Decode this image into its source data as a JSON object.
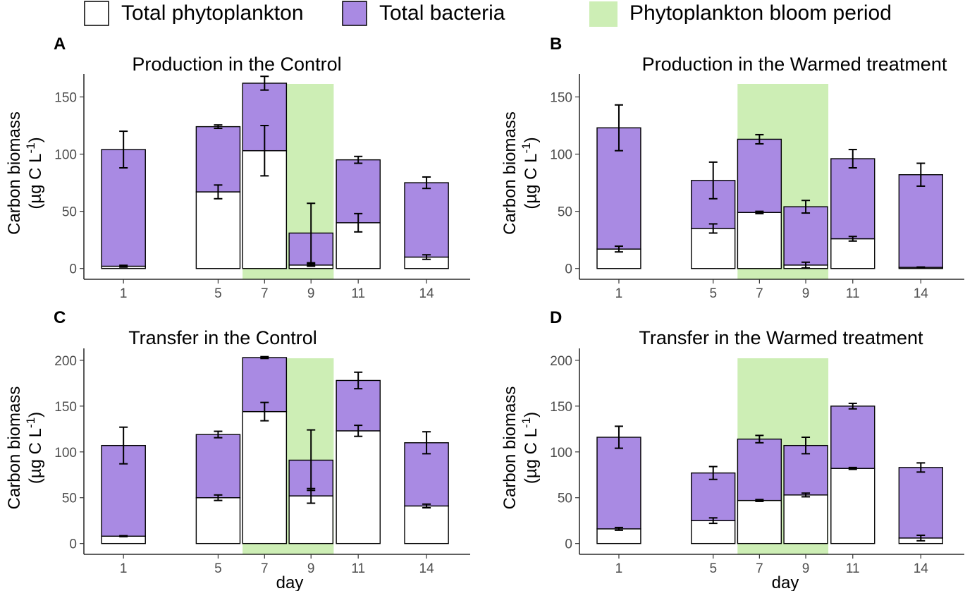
{
  "legend": {
    "phytoplankton_label": "Total phytoplankton",
    "bacteria_label": "Total bacteria",
    "bloom_label": "Phytoplankton bloom period"
  },
  "colors": {
    "phytoplankton": "#ffffff",
    "bacteria": "#a98ae3",
    "bloom": "#cdeeb5",
    "outline": "#000000"
  },
  "chart_data": [
    {
      "type": "bar",
      "stacked": true,
      "letter": "A",
      "title": "Production in the Control",
      "xlabel": "",
      "ylabel_line1": "Carbon biomass",
      "ylabel_line2": "(µg C L",
      "ylabel_sup": "-1",
      "ylabel_end": ")",
      "ylim": [
        0,
        170
      ],
      "yticks": [
        0,
        50,
        100,
        150
      ],
      "x": [
        1,
        5,
        7,
        9,
        11,
        14
      ],
      "x_tick_labels": [
        "1",
        "5",
        "7",
        "9",
        "11",
        "14"
      ],
      "bloom_days": [
        7,
        9
      ],
      "series": [
        {
          "name": "Total phytoplankton",
          "values": [
            2,
            67,
            103,
            3,
            40,
            10
          ],
          "err": [
            0.8,
            6,
            22,
            1,
            8,
            2
          ]
        },
        {
          "name": "Total bacteria",
          "values": [
            102,
            57,
            59,
            28,
            55,
            65
          ],
          "err": [
            16,
            1.5,
            6,
            26,
            3,
            5
          ]
        }
      ]
    },
    {
      "type": "bar",
      "stacked": true,
      "letter": "B",
      "title": "Production in the Warmed treatment",
      "xlabel": "",
      "ylabel_line1": "Carbon biomass",
      "ylabel_line2": "(µg C L",
      "ylabel_sup": "-1",
      "ylabel_end": ")",
      "ylim": [
        0,
        170
      ],
      "yticks": [
        0,
        50,
        100,
        150
      ],
      "x": [
        1,
        5,
        7,
        9,
        11,
        14
      ],
      "x_tick_labels": [
        "1",
        "5",
        "7",
        "9",
        "11",
        "14"
      ],
      "bloom_days": [
        7,
        9
      ],
      "series": [
        {
          "name": "Total phytoplankton",
          "values": [
            17,
            35,
            49,
            3,
            26,
            1
          ],
          "err": [
            2.5,
            4,
            1,
            2.5,
            2,
            0.3
          ]
        },
        {
          "name": "Total bacteria",
          "values": [
            106,
            42,
            64,
            51,
            70,
            81
          ],
          "err": [
            20,
            16,
            4,
            5.5,
            8,
            10
          ]
        }
      ]
    },
    {
      "type": "bar",
      "stacked": true,
      "letter": "C",
      "title": "Transfer in the Control",
      "xlabel": "day",
      "ylabel_line1": "Carbon biomass",
      "ylabel_line2": "(µg C L",
      "ylabel_sup": "-1",
      "ylabel_end": ")",
      "ylim": [
        0,
        213
      ],
      "yticks": [
        0,
        50,
        100,
        150,
        200
      ],
      "x": [
        1,
        5,
        7,
        9,
        11,
        14
      ],
      "x_tick_labels": [
        "1",
        "5",
        "7",
        "9",
        "11",
        "14"
      ],
      "bloom_days": [
        7,
        9
      ],
      "series": [
        {
          "name": "Total phytoplankton",
          "values": [
            8,
            50,
            144,
            52,
            123,
            41
          ],
          "err": [
            0.5,
            3,
            10,
            8,
            6,
            2
          ]
        },
        {
          "name": "Total bacteria",
          "values": [
            99,
            69,
            59,
            39,
            55,
            69
          ],
          "err": [
            20,
            3.5,
            1,
            33,
            9,
            12
          ]
        }
      ]
    },
    {
      "type": "bar",
      "stacked": true,
      "letter": "D",
      "title": "Transfer in the Warmed treatment",
      "xlabel": "day",
      "ylabel_line1": "Carbon biomass",
      "ylabel_line2": "(µg C L",
      "ylabel_sup": "-1",
      "ylabel_end": ")",
      "ylim": [
        0,
        213
      ],
      "yticks": [
        0,
        50,
        100,
        150,
        200
      ],
      "x": [
        1,
        5,
        7,
        9,
        11,
        14
      ],
      "x_tick_labels": [
        "1",
        "5",
        "7",
        "9",
        "11",
        "14"
      ],
      "bloom_days": [
        7,
        9
      ],
      "series": [
        {
          "name": "Total phytoplankton",
          "values": [
            16,
            25,
            47,
            53,
            82,
            6
          ],
          "err": [
            1.5,
            3,
            1,
            2,
            1,
            3
          ]
        },
        {
          "name": "Total bacteria",
          "values": [
            100,
            52,
            67,
            54,
            68,
            77
          ],
          "err": [
            12,
            7,
            4,
            9,
            3,
            5
          ]
        }
      ]
    }
  ]
}
